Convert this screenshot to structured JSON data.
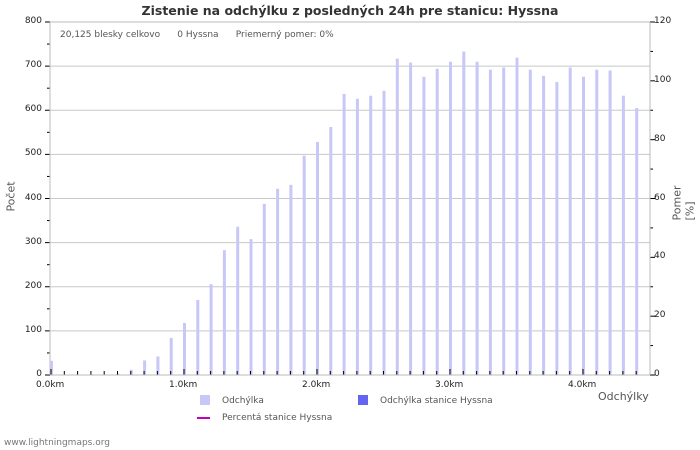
{
  "title": "Zistenie na odchýlku z posledných 24h pre stanicu: Hyssna",
  "stats": {
    "total": "20,125 blesky celkovo",
    "station": "0 Hyssna",
    "ratio": "Priemerný pomer: 0%"
  },
  "y_left_label": "Počet",
  "y_right_label": "Pomer [%]",
  "x_label": "Odchýlky",
  "y_left_ticks": [
    "0",
    "100",
    "200",
    "300",
    "400",
    "500",
    "600",
    "700",
    "800"
  ],
  "y_right_ticks": [
    "0",
    "20",
    "40",
    "60",
    "80",
    "100",
    "120"
  ],
  "x_ticks": [
    "0.0km",
    "1.0km",
    "2.0km",
    "3.0km",
    "4.0km"
  ],
  "legend": [
    {
      "label": "Odchýlka",
      "color": "#c8c8f8"
    },
    {
      "label": "Odchýlka stanice Hyssna",
      "color": "#6464f0"
    },
    {
      "label": "Percentá stanice Hyssna",
      "color": "#c000c0"
    }
  ],
  "footer": "www.lightningmaps.org",
  "chart_data": {
    "type": "bar",
    "title": "Zistenie na odchýlku z posledných 24h pre stanicu: Hyssna",
    "xlabel": "Odchýlky",
    "ylabel": "Počet",
    "y2label": "Pomer [%]",
    "ylim": [
      0,
      800
    ],
    "y2lim": [
      0,
      120
    ],
    "grid": true,
    "legend_position": "bottom",
    "categories": [
      "0.0",
      "0.1",
      "0.2",
      "0.3",
      "0.4",
      "0.5",
      "0.6",
      "0.7",
      "0.8",
      "0.9",
      "1.0",
      "1.1",
      "1.2",
      "1.3",
      "1.4",
      "1.5",
      "1.6",
      "1.7",
      "1.8",
      "1.9",
      "2.0",
      "2.1",
      "2.2",
      "2.3",
      "2.4",
      "2.5",
      "2.6",
      "2.7",
      "2.8",
      "2.9",
      "3.0",
      "3.1",
      "3.2",
      "3.3",
      "3.4",
      "3.5",
      "3.6",
      "3.7",
      "3.8",
      "3.9",
      "4.0",
      "4.1",
      "4.2",
      "4.3",
      "4.4"
    ],
    "series": [
      {
        "name": "Odchýlka",
        "values": [
          32,
          0,
          0,
          2,
          0,
          3,
          12,
          33,
          42,
          84,
          118,
          170,
          206,
          283,
          336,
          308,
          388,
          422,
          431,
          497,
          528,
          562,
          637,
          626,
          633,
          644,
          717,
          708,
          676,
          694,
          710,
          733,
          710,
          692,
          697,
          719,
          692,
          678,
          664,
          697,
          676,
          692,
          690,
          633,
          605
        ]
      },
      {
        "name": "Odchýlka stanice Hyssna",
        "values": [
          0,
          0,
          0,
          0,
          0,
          0,
          0,
          0,
          0,
          0,
          0,
          0,
          0,
          0,
          0,
          0,
          0,
          0,
          0,
          0,
          0,
          0,
          0,
          0,
          0,
          0,
          0,
          0,
          0,
          0,
          0,
          0,
          0,
          0,
          0,
          0,
          0,
          0,
          0,
          0,
          0,
          0,
          0,
          0,
          0
        ]
      },
      {
        "name": "Percentá stanice Hyssna",
        "values": [
          0,
          0,
          0,
          0,
          0,
          0,
          0,
          0,
          0,
          0,
          0,
          0,
          0,
          0,
          0,
          0,
          0,
          0,
          0,
          0,
          0,
          0,
          0,
          0,
          0,
          0,
          0,
          0,
          0,
          0,
          0,
          0,
          0,
          0,
          0,
          0,
          0,
          0,
          0,
          0,
          0,
          0,
          0,
          0,
          0
        ]
      }
    ]
  }
}
